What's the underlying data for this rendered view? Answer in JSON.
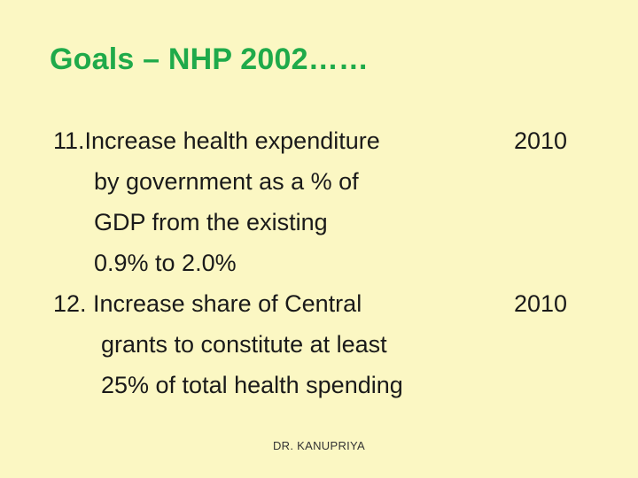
{
  "slide": {
    "title": "Goals – NHP 2002……",
    "goals": [
      {
        "lines": [
          "11.Increase health expenditure",
          "by government as a % of",
          "GDP from the existing",
          "0.9% to 2.0%"
        ],
        "year": "2010"
      },
      {
        "lines": [
          "12. Increase share of Central",
          "grants to  constitute at least",
          "25% of total health spending"
        ],
        "year": "2010"
      }
    ],
    "footer": "DR. KANUPRIYA"
  },
  "colors": {
    "background": "#fbf7c3",
    "title": "#1faa4a",
    "text": "#1a1a1a"
  }
}
